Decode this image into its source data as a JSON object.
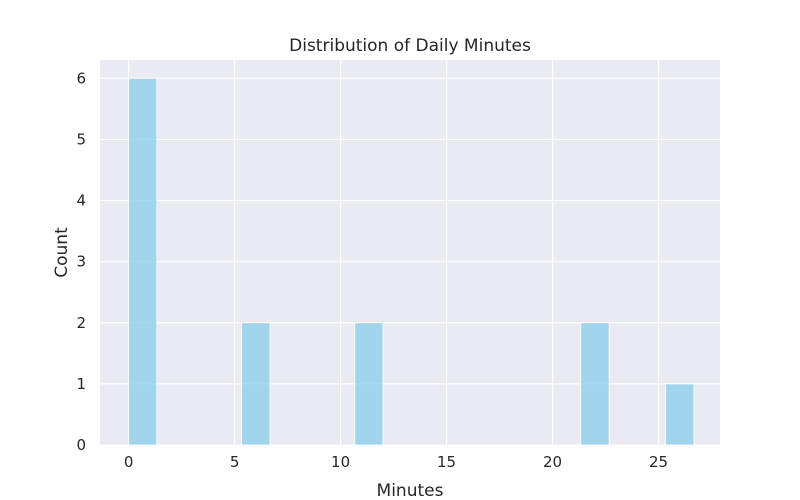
{
  "chart_data": {
    "type": "bar",
    "title": "Distribution of Daily Minutes",
    "xlabel": "Minutes",
    "ylabel": "Count",
    "xlim": [
      -1.35,
      27.9
    ],
    "ylim": [
      0,
      6.3
    ],
    "xticks": [
      0,
      5,
      10,
      15,
      20,
      25
    ],
    "yticks": [
      0,
      1,
      2,
      3,
      4,
      5,
      6
    ],
    "grid": true,
    "bins": [
      {
        "start": 0.0,
        "end": 1.33,
        "count": 6
      },
      {
        "start": 5.33,
        "end": 6.67,
        "count": 2
      },
      {
        "start": 10.67,
        "end": 12.0,
        "count": 2
      },
      {
        "start": 21.33,
        "end": 22.67,
        "count": 2
      },
      {
        "start": 25.33,
        "end": 26.67,
        "count": 1
      }
    ],
    "colors": {
      "background": "#eaeaf2",
      "grid": "#ffffff",
      "bar": "#87ceeb"
    }
  }
}
